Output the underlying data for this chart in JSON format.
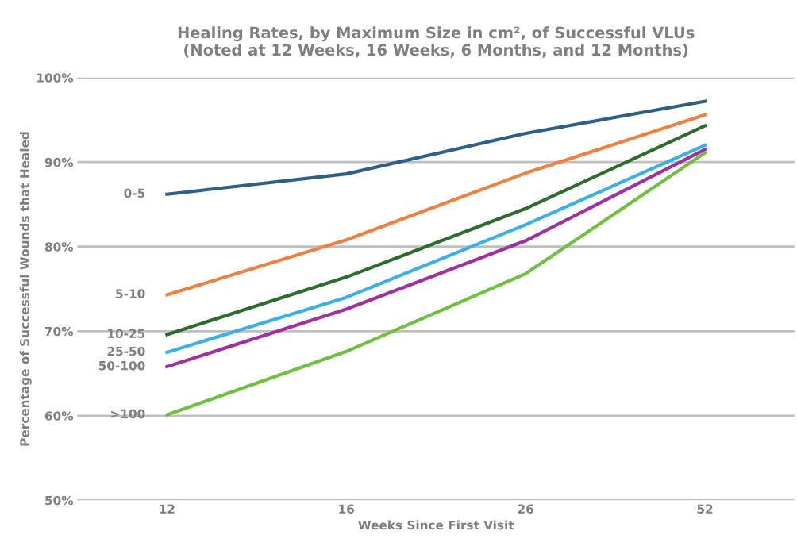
{
  "chart_data": {
    "type": "line",
    "title": "Healing Rates, by Maximum Size in cm², of Successful VLUs\n(Noted at 12 Weeks, 16 Weeks, 6 Months, and 12 Months)",
    "xlabel": "Weeks Since First Visit",
    "ylabel": "Percentage of Successful Wounds that Healed",
    "categories": [
      "12",
      "16",
      "26",
      "52"
    ],
    "series": [
      {
        "name": "0-5",
        "color": "#2e5f86",
        "values": [
          86.2,
          88.6,
          93.4,
          97.2
        ]
      },
      {
        "name": "5-10",
        "color": "#f08040",
        "values": [
          74.3,
          80.8,
          88.7,
          95.6
        ]
      },
      {
        "name": "10-25",
        "color": "#2e6b2e",
        "values": [
          69.6,
          76.4,
          84.5,
          94.3
        ]
      },
      {
        "name": "25-50",
        "color": "#3ab0e8",
        "values": [
          67.5,
          74.0,
          82.6,
          92.0
        ]
      },
      {
        "name": "50-100",
        "color": "#a030a0",
        "values": [
          65.8,
          72.6,
          80.7,
          91.5
        ]
      },
      {
        "name": ">100",
        "color": "#70c040",
        "values": [
          60.1,
          67.6,
          76.8,
          91.1
        ]
      }
    ],
    "ylim": [
      50,
      100
    ],
    "yticks": [
      {
        "value": 50,
        "label": "50%"
      },
      {
        "value": 60,
        "label": "60%"
      },
      {
        "value": 70,
        "label": "70%"
      },
      {
        "value": 80,
        "label": "80%"
      },
      {
        "value": 90,
        "label": "90%"
      },
      {
        "value": 100,
        "label": "100%"
      }
    ],
    "grid": "y",
    "legend": false,
    "marker": "none",
    "line_style": "solid"
  }
}
